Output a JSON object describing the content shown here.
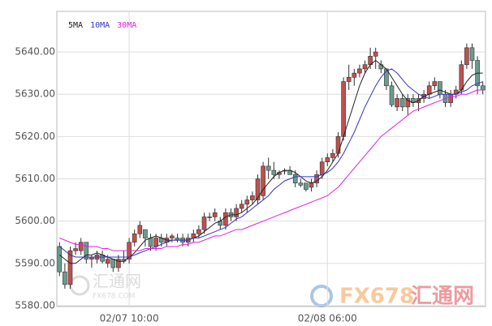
{
  "chart_data": {
    "type": "candlestick",
    "categories": [
      null,
      null,
      null,
      null,
      null,
      null,
      null,
      null,
      null,
      null,
      null,
      null,
      null,
      "02/07 10:00",
      null,
      null,
      null,
      null,
      null,
      null,
      null,
      null,
      null,
      null,
      null,
      null,
      null,
      null,
      null,
      null,
      null,
      null,
      null,
      null,
      null,
      null,
      null,
      null,
      null,
      null,
      null,
      null,
      null,
      null,
      null,
      null,
      null,
      null,
      null,
      null,
      "02/08 06:00",
      null,
      null,
      null,
      null,
      null,
      null,
      null,
      null,
      null,
      null,
      null,
      null,
      null,
      null,
      null,
      null,
      null,
      null,
      null,
      null,
      null,
      null,
      null,
      null,
      null,
      null,
      null,
      null,
      null
    ],
    "open": [
      5594,
      5588,
      5585,
      5593,
      5593,
      5595,
      5591,
      5591,
      5592,
      5590,
      5591,
      5589,
      5591,
      5591,
      5595,
      5597,
      5598,
      5596,
      5594,
      5596,
      5595,
      5596,
      5596,
      5596,
      5595,
      5596,
      5597,
      5598,
      5601,
      5601,
      5600,
      5599,
      5602,
      5601,
      5603,
      5604,
      5605,
      5605,
      5606,
      5613,
      5612,
      5611,
      5612,
      5612,
      5611,
      5609,
      5609,
      5608,
      5609,
      5611,
      5614,
      5615,
      5616,
      5620,
      5633,
      5634,
      5635,
      5636,
      5637,
      5639,
      5637,
      5636,
      5632,
      5627,
      5629,
      5627,
      5629,
      5628,
      5629,
      5630,
      5632,
      5633,
      5630,
      5628,
      5630,
      5631,
      5637,
      5641,
      5638,
      5632
    ],
    "high": [
      5595,
      5590,
      5594,
      5595,
      5596,
      5595,
      5592,
      5593,
      5593,
      5592,
      5591,
      5592,
      5593,
      5596,
      5598,
      5600,
      5598,
      5597,
      5597,
      5597,
      5597,
      5597,
      5597,
      5597,
      5597,
      5598,
      5599,
      5602,
      5602,
      5603,
      5601,
      5603,
      5603,
      5604,
      5605,
      5606,
      5607,
      5611,
      5614,
      5615,
      5614,
      5612,
      5612.5,
      5613,
      5612,
      5610,
      5609,
      5610,
      5612,
      5615,
      5616,
      5617,
      5621,
      5634,
      5637,
      5636,
      5637,
      5638,
      5641,
      5641,
      5638,
      5636,
      5633,
      5630,
      5630,
      5630,
      5630,
      5630,
      5631,
      5633,
      5634,
      5633,
      5631,
      5631,
      5632,
      5638,
      5642,
      5642,
      5639,
      5633
    ],
    "low": [
      5587,
      5584,
      5584,
      5592,
      5592,
      5590,
      5589,
      5590,
      5590,
      5589,
      5588,
      5588,
      5590,
      5590,
      5594,
      5596,
      5594,
      5593,
      5593,
      5594,
      5594,
      5595,
      5595,
      5594,
      5594,
      5595,
      5596,
      5597,
      5600,
      5600,
      5598,
      5598,
      5600,
      5600,
      5602,
      5602,
      5604,
      5604,
      5605,
      5610,
      5610,
      5610,
      5611,
      5611,
      5608,
      5608,
      5607,
      5607,
      5608,
      5610,
      5613,
      5614,
      5615,
      5619,
      5631,
      5632,
      5634,
      5635,
      5636,
      5636,
      5635,
      5631,
      5627,
      5626,
      5626,
      5625,
      5627,
      5626,
      5628,
      5629,
      5631,
      5629,
      5627,
      5627,
      5629,
      5630,
      5636,
      5636,
      5630,
      5630
    ],
    "close": [
      5588,
      5585,
      5593,
      5593.5,
      5595,
      5591,
      5591.5,
      5592,
      5590.5,
      5591,
      5589,
      5591,
      5590.5,
      5595,
      5597,
      5599,
      5596,
      5594,
      5596,
      5595,
      5596,
      5596.5,
      5595.5,
      5595,
      5596,
      5597,
      5598,
      5601,
      5601,
      5602,
      5599,
      5602,
      5601,
      5603,
      5604,
      5605,
      5606,
      5610,
      5613,
      5612,
      5611,
      5611.5,
      5612,
      5611,
      5609,
      5608.5,
      5607.5,
      5609,
      5611,
      5614,
      5615,
      5616,
      5620,
      5633,
      5634,
      5635,
      5636,
      5637,
      5639,
      5640,
      5636,
      5632,
      5627.5,
      5629,
      5627,
      5629,
      5628,
      5629,
      5630,
      5632,
      5633,
      5630,
      5628,
      5630,
      5631,
      5637,
      5641,
      5638,
      5632,
      5631
    ],
    "up_color": "#c0504d",
    "down_color": "#6a9c8e",
    "series": [
      {
        "name": "5MA",
        "color": "#222222",
        "values": [
          5592,
          5591,
          5590,
          5590,
          5591,
          5592,
          5592,
          5592.5,
          5592,
          5591.5,
          5591,
          5590.5,
          5590.5,
          5591.5,
          5592.5,
          5594,
          5595.5,
          5596,
          5596.5,
          5596,
          5595.5,
          5595.5,
          5595.5,
          5595.5,
          5595.5,
          5596,
          5596.5,
          5597.5,
          5598.5,
          5599.5,
          5600,
          5601,
          5601.5,
          5601.5,
          5602,
          5603,
          5604,
          5605.5,
          5607.5,
          5609,
          5610.5,
          5611.5,
          5612,
          5612,
          5611.5,
          5610.5,
          5609.5,
          5609,
          5609.5,
          5610.5,
          5612,
          5614,
          5616,
          5620,
          5624,
          5628,
          5632,
          5635,
          5637,
          5638,
          5637,
          5636,
          5634,
          5632,
          5630,
          5628.5,
          5628,
          5628.5,
          5629.5,
          5630,
          5630.5,
          5631,
          5630.5,
          5630,
          5630,
          5631,
          5633,
          5634.5,
          5635,
          5635
        ]
      },
      {
        "name": "10MA",
        "color": "#3333cc",
        "values": [
          5594,
          5593,
          5592,
          5591.5,
          5591.5,
          5591.5,
          5591.5,
          5591.5,
          5591.5,
          5591.5,
          5591.5,
          5591.5,
          5591.5,
          5591.5,
          5592,
          5592.5,
          5593,
          5593.5,
          5594,
          5594.5,
          5595,
          5595.5,
          5595.5,
          5595.5,
          5595.5,
          5596,
          5596,
          5596.5,
          5597,
          5597.5,
          5598,
          5598.5,
          5599.5,
          5600.5,
          5601,
          5602,
          5603,
          5604,
          5605,
          5606,
          5607.5,
          5608.5,
          5609.5,
          5610,
          5610.5,
          5610.5,
          5610.5,
          5610.5,
          5610.5,
          5611,
          5611.5,
          5612.5,
          5614,
          5616,
          5618.5,
          5621,
          5624,
          5627,
          5629.5,
          5632,
          5634,
          5635.5,
          5636,
          5635,
          5633.5,
          5632,
          5631,
          5630,
          5629.5,
          5629,
          5629.5,
          5630,
          5630,
          5630,
          5630,
          5630.5,
          5631,
          5632,
          5632.5,
          5633
        ]
      },
      {
        "name": "30MA",
        "color": "#e020e0",
        "values": [
          5596,
          5595.5,
          5595,
          5594.5,
          5594.5,
          5594,
          5594,
          5594,
          5593.5,
          5593.5,
          5593,
          5593,
          5593,
          5593,
          5593,
          5593,
          5593.5,
          5593.5,
          5593.5,
          5593.5,
          5594,
          5594,
          5594,
          5594.5,
          5594.5,
          5595,
          5595,
          5595.5,
          5596,
          5596.5,
          5596.5,
          5597,
          5597.5,
          5598,
          5598,
          5598.5,
          5599,
          5599.5,
          5600,
          5600.5,
          5601,
          5601.5,
          5602,
          5602.5,
          5603,
          5603.5,
          5604,
          5604.5,
          5605,
          5605.5,
          5606,
          5607,
          5608,
          5609.5,
          5611,
          5612.5,
          5614,
          5615.5,
          5617,
          5618.5,
          5620,
          5621,
          5622,
          5623,
          5624,
          5625,
          5626,
          5626.5,
          5627,
          5627.5,
          5628,
          5628.5,
          5629,
          5629.5,
          5629.5,
          5630,
          5630,
          5630.5,
          5631,
          5631
        ]
      }
    ],
    "ylim": [
      5579.8,
      5649.6
    ],
    "yticks": [
      {
        "value": 5580,
        "label": "5580.00"
      },
      {
        "value": 5590,
        "label": "5590.00"
      },
      {
        "value": 5600,
        "label": "5600.00"
      },
      {
        "value": 5610,
        "label": "5610.00"
      },
      {
        "value": 5620,
        "label": "5620.00"
      },
      {
        "value": 5630,
        "label": "5630.00"
      },
      {
        "value": 5640,
        "label": "5640.00"
      }
    ],
    "grid": true,
    "watermarks": [
      "汇通网",
      "FX678.COM",
      "FX678",
      "汇通网"
    ]
  }
}
